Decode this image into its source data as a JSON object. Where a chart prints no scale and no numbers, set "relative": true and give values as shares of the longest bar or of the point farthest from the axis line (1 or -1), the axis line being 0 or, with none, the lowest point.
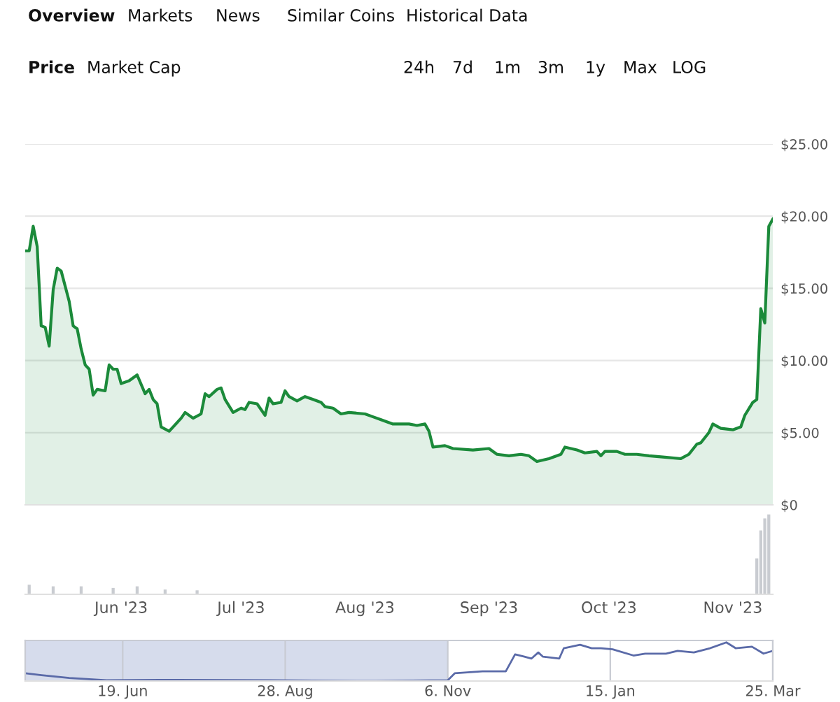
{
  "chart_data": [
    {
      "type": "area",
      "annotations": [
        "Overview",
        "Markets",
        "News",
        "Similar Coins",
        "Historical Data",
        "Price",
        "Market Cap",
        "24h",
        "7d",
        "1m",
        "3m",
        "1y",
        "Max",
        "LOG"
      ],
      "x": [
        "2023-05-08",
        "2023-05-09",
        "2023-05-10",
        "2023-05-11",
        "2023-05-12",
        "2023-05-13",
        "2023-05-14",
        "2023-05-15",
        "2023-05-16",
        "2023-05-17",
        "2023-05-19",
        "2023-05-20",
        "2023-05-21",
        "2023-05-22",
        "2023-05-23",
        "2023-05-24",
        "2023-05-25",
        "2023-05-26",
        "2023-05-28",
        "2023-05-29",
        "2023-05-30",
        "2023-05-31",
        "2023-06-01",
        "2023-06-03",
        "2023-06-05",
        "2023-06-07",
        "2023-06-08",
        "2023-06-09",
        "2023-06-10",
        "2023-06-11",
        "2023-06-13",
        "2023-06-14",
        "2023-06-16",
        "2023-06-17",
        "2023-06-19",
        "2023-06-21",
        "2023-06-22",
        "2023-06-23",
        "2023-06-25",
        "2023-06-26",
        "2023-06-27",
        "2023-06-29",
        "2023-07-01",
        "2023-07-02",
        "2023-07-03",
        "2023-07-05",
        "2023-07-07",
        "2023-07-08",
        "2023-07-09",
        "2023-07-11",
        "2023-07-12",
        "2023-07-13",
        "2023-07-15",
        "2023-07-17",
        "2023-07-19",
        "2023-07-21",
        "2023-07-22",
        "2023-07-24",
        "2023-07-26",
        "2023-07-28",
        "2023-08-01",
        "2023-08-03",
        "2023-08-05",
        "2023-08-08",
        "2023-08-10",
        "2023-08-12",
        "2023-08-14",
        "2023-08-16",
        "2023-08-17",
        "2023-08-18",
        "2023-08-21",
        "2023-08-23",
        "2023-08-28",
        "2023-09-01",
        "2023-09-03",
        "2023-09-06",
        "2023-09-09",
        "2023-09-11",
        "2023-09-13",
        "2023-09-16",
        "2023-09-19",
        "2023-09-20",
        "2023-09-23",
        "2023-09-25",
        "2023-09-28",
        "2023-09-29",
        "2023-09-30",
        "2023-10-03",
        "2023-10-05",
        "2023-10-08",
        "2023-10-11",
        "2023-10-15",
        "2023-10-19",
        "2023-10-21",
        "2023-10-23",
        "2023-10-24",
        "2023-10-26",
        "2023-10-27",
        "2023-10-29",
        "2023-11-01",
        "2023-11-03",
        "2023-11-04",
        "2023-11-06",
        "2023-11-07",
        "2023-11-08",
        "2023-11-09",
        "2023-11-10",
        "2023-11-11"
      ],
      "series": [
        {
          "color": "#1b8a3a",
          "values": [
            17.6,
            17.6,
            19.3,
            17.9,
            12.4,
            12.3,
            11.0,
            14.9,
            16.4,
            16.2,
            14.1,
            12.4,
            12.2,
            10.8,
            9.7,
            9.4,
            7.6,
            8.0,
            7.9,
            9.7,
            9.4,
            9.4,
            8.4,
            8.6,
            9.0,
            7.7,
            8.0,
            7.3,
            7.0,
            5.4,
            5.1,
            5.4,
            6.0,
            6.4,
            6.0,
            6.3,
            7.7,
            7.5,
            8.0,
            8.1,
            7.3,
            6.4,
            6.7,
            6.6,
            7.1,
            7.0,
            6.2,
            7.4,
            7.0,
            7.1,
            7.9,
            7.5,
            7.2,
            7.5,
            7.3,
            7.1,
            6.8,
            6.7,
            6.3,
            6.4,
            6.3,
            6.1,
            5.9,
            5.6,
            5.6,
            5.6,
            5.5,
            5.6,
            5.1,
            4.0,
            4.1,
            3.9,
            3.8,
            3.9,
            3.5,
            3.4,
            3.5,
            3.4,
            3.0,
            3.2,
            3.5,
            4.0,
            3.8,
            3.6,
            3.7,
            3.4,
            3.7,
            3.7,
            3.5,
            3.5,
            3.4,
            3.3,
            3.2,
            3.5,
            4.2,
            4.3,
            5.0,
            5.6,
            5.3,
            5.2,
            5.4,
            6.2,
            7.1,
            7.3,
            13.6,
            12.6,
            19.3,
            19.8
          ]
        }
      ],
      "xlim": [
        "2023-05-08",
        "2023-11-11"
      ],
      "ylim": [
        0,
        25
      ],
      "yticks": [
        {
          "value": 0,
          "label": "$0"
        },
        {
          "value": 5,
          "label": "$5.00"
        },
        {
          "value": 10,
          "label": "$10.00"
        },
        {
          "value": 15,
          "label": "$15.00"
        },
        {
          "value": 20,
          "label": "$20.00"
        },
        {
          "value": 25,
          "label": "$25.00"
        }
      ],
      "tick_labels": "y",
      "grid": "y",
      "legend": false
    },
    {
      "type": "bar",
      "relative": true,
      "x": [
        "2023-05-09",
        "2023-05-15",
        "2023-05-22",
        "2023-05-30",
        "2023-06-05",
        "2023-06-12",
        "2023-06-20",
        "2023-11-07",
        "2023-11-08",
        "2023-11-09",
        "2023-11-10"
      ],
      "series": [
        {
          "color": "#c9ccd1",
          "values": [
            0.12,
            0.1,
            0.1,
            0.08,
            0.1,
            0.06,
            0.05,
            0.45,
            0.8,
            0.95,
            1.0
          ]
        }
      ],
      "xlim": [
        "2023-05-08",
        "2023-11-11"
      ],
      "xticks": [
        {
          "value": "2023-06-01",
          "label": "Jun '23"
        },
        {
          "value": "2023-07-01",
          "label": "Jul '23"
        },
        {
          "value": "2023-08-01",
          "label": "Aug '23"
        },
        {
          "value": "2023-09-01",
          "label": "Sep '23"
        },
        {
          "value": "2023-10-01",
          "label": "Oct '23"
        },
        {
          "value": "2023-11-01",
          "label": "Nov '23"
        }
      ],
      "tick_labels": "x",
      "legend": false
    },
    {
      "type": "line",
      "relative": true,
      "x": [
        "2023-05-08",
        "2023-05-15",
        "2023-05-27",
        "2023-06-12",
        "2023-07-05",
        "2023-08-21",
        "2023-10-06",
        "2023-11-06",
        "2023-11-09",
        "2023-11-21",
        "2023-12-01",
        "2023-12-05",
        "2023-12-09",
        "2023-12-12",
        "2023-12-15",
        "2023-12-17",
        "2023-12-24",
        "2023-12-26",
        "2024-01-02",
        "2024-01-07",
        "2024-01-11",
        "2024-01-16",
        "2024-01-25",
        "2024-01-30",
        "2024-02-08",
        "2024-02-13",
        "2024-02-20",
        "2024-02-27",
        "2024-03-05",
        "2024-03-09",
        "2024-03-16",
        "2024-03-21",
        "2024-03-25"
      ],
      "series": [
        {
          "color": "#5a6aa8",
          "values": [
            0.2,
            0.15,
            0.08,
            0.02,
            0.03,
            0.02,
            0,
            0.02,
            0.2,
            0.25,
            0.25,
            0.69,
            0.63,
            0.58,
            0.74,
            0.63,
            0.58,
            0.85,
            0.94,
            0.85,
            0.85,
            0.82,
            0.66,
            0.71,
            0.71,
            0.78,
            0.74,
            0.85,
            1,
            0.85,
            0.89,
            0.71,
            0.78
          ]
        }
      ],
      "xlim": [
        "2023-05-08",
        "2024-03-25"
      ],
      "xticks": [
        {
          "value": "2023-06-19",
          "label": "19. Jun"
        },
        {
          "value": "2023-08-28",
          "label": "28. Aug"
        },
        {
          "value": "2023-11-06",
          "label": "6. Nov"
        },
        {
          "value": "2024-01-15",
          "label": "15. Jan"
        },
        {
          "value": "2024-03-25",
          "label": "25. Mar"
        }
      ],
      "bands": [
        {
          "axis": "x",
          "from": "2023-05-08",
          "to": "2023-11-06",
          "color": "#d6dcec"
        }
      ],
      "tick_labels": "x",
      "grid": "x",
      "legend": false
    }
  ]
}
